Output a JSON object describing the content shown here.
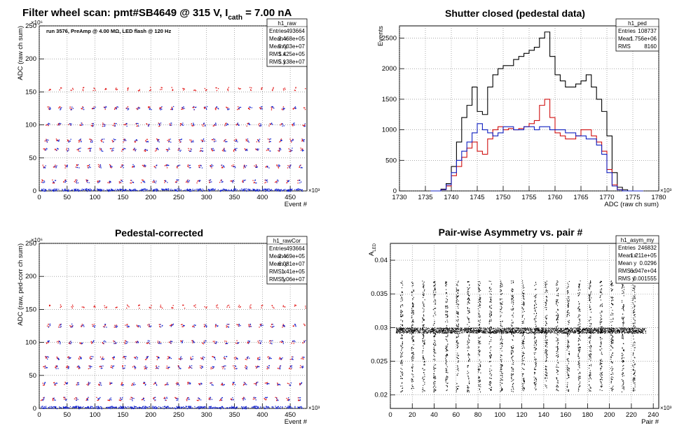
{
  "page_title": {
    "prefix": "Filter wheel scan: pmt#SB4649 @   315 V, I",
    "subscript": "cath",
    "suffix": " = 7.00 nA"
  },
  "chart_data": [
    {
      "id": "raw",
      "type": "scatter",
      "title": "",
      "note": "run 3576, PreAmp @ 4.00 MΩ, LED flash @  120 Hz",
      "xlabel": "Event #",
      "ylabel": "ADC (raw ch sum)",
      "x_multiplier": "×10³",
      "y_multiplier": "×10⁶",
      "xlim": [
        0,
        480
      ],
      "ylim": [
        0,
        250
      ],
      "xticks": [
        0,
        50,
        100,
        150,
        200,
        250,
        300,
        350,
        400,
        450
      ],
      "yticks": [
        0,
        50,
        100,
        150,
        200,
        250
      ],
      "grid": true,
      "series": [
        {
          "color": "#e01010",
          "levels": [
            15,
            38,
            63,
            77,
            101,
            126,
            155
          ]
        },
        {
          "color": "#1020d0",
          "levels": [
            2,
            15,
            38,
            63,
            77,
            101,
            126
          ]
        }
      ],
      "stats": {
        "name": "h1_raw",
        "rows": [
          [
            "Entries",
            "493664"
          ],
          [
            "Mean x",
            "2.468e+05"
          ],
          [
            "Mean y",
            "5.603e+07"
          ],
          [
            "RMS x",
            "1.425e+05"
          ],
          [
            "RMS y",
            "5.138e+07"
          ]
        ]
      }
    },
    {
      "id": "ped",
      "type": "line",
      "title": "Shutter closed (pedestal data)",
      "xlabel": "ADC (raw ch sum)",
      "ylabel": "Events",
      "x_multiplier": "×10³",
      "xlim": [
        1730,
        1780
      ],
      "ylim": [
        0,
        2700
      ],
      "xticks": [
        1730,
        1735,
        1740,
        1745,
        1750,
        1755,
        1760,
        1765,
        1770,
        1775,
        1780
      ],
      "yticks": [
        0,
        500,
        1000,
        1500,
        2000,
        2500
      ],
      "grid": true,
      "x": [
        1736,
        1738,
        1739,
        1740,
        1741,
        1742,
        1743,
        1744,
        1745,
        1746,
        1747,
        1748,
        1749,
        1750,
        1751,
        1752,
        1753,
        1754,
        1755,
        1756,
        1757,
        1758,
        1759,
        1760,
        1761,
        1762,
        1763,
        1764,
        1765,
        1766,
        1767,
        1768,
        1769,
        1770,
        1771,
        1772,
        1773,
        1774,
        1776
      ],
      "series": [
        {
          "color": "#000000",
          "values": [
            0,
            30,
            120,
            400,
            800,
            1200,
            1400,
            1700,
            1300,
            1250,
            1700,
            1900,
            2000,
            2050,
            2050,
            2150,
            2200,
            2250,
            2300,
            2350,
            2500,
            2600,
            2200,
            1900,
            1800,
            1700,
            1700,
            1750,
            1800,
            1900,
            1700,
            1500,
            1300,
            900,
            300,
            60,
            20,
            0,
            0
          ]
        },
        {
          "color": "#d01010",
          "values": [
            0,
            20,
            80,
            250,
            400,
            550,
            700,
            800,
            650,
            600,
            850,
            1000,
            1050,
            1000,
            1020,
            1000,
            1020,
            1050,
            1100,
            1150,
            1400,
            1500,
            1200,
            950,
            900,
            850,
            850,
            900,
            1000,
            1000,
            900,
            800,
            650,
            350,
            100,
            20,
            0,
            0,
            0
          ]
        },
        {
          "color": "#1020c0",
          "values": [
            0,
            20,
            100,
            300,
            500,
            650,
            800,
            950,
            1100,
            1000,
            950,
            900,
            950,
            1050,
            1050,
            1000,
            1000,
            1050,
            1050,
            1000,
            1050,
            1050,
            1000,
            1000,
            1000,
            950,
            950,
            900,
            900,
            850,
            850,
            750,
            600,
            300,
            80,
            20,
            0,
            0,
            0
          ]
        }
      ],
      "stats": {
        "name": "h1_ped",
        "rows": [
          [
            "Entries",
            "108737"
          ],
          [
            "Mean",
            "1.756e+06"
          ],
          [
            "RMS",
            "8160"
          ]
        ]
      }
    },
    {
      "id": "rawcor",
      "type": "scatter",
      "title": "Pedestal-corrected",
      "xlabel": "Event #",
      "ylabel": "ADC (raw, ped-corr ch sum)",
      "x_multiplier": "×10³",
      "y_multiplier": "×10⁶",
      "xlim": [
        0,
        480
      ],
      "ylim": [
        0,
        250
      ],
      "xticks": [
        0,
        50,
        100,
        150,
        200,
        250,
        300,
        350,
        400,
        450
      ],
      "yticks": [
        0,
        50,
        100,
        150,
        200,
        250
      ],
      "grid": true,
      "series": [
        {
          "color": "#e01010",
          "levels": [
            15,
            38,
            63,
            77,
            101,
            126,
            155
          ]
        },
        {
          "color": "#1020d0",
          "levels": [
            2,
            15,
            38,
            63,
            77,
            101,
            126
          ]
        }
      ],
      "stats": {
        "name": "h1_rawCor",
        "rows": [
          [
            "Entries",
            "493664"
          ],
          [
            "Mean x",
            "2.469e+05"
          ],
          [
            "Mean y",
            "6.081e+07"
          ],
          [
            "RMS x",
            "1.41e+05"
          ],
          [
            "RMS y",
            "5.06e+07"
          ]
        ]
      }
    },
    {
      "id": "asym",
      "type": "scatter",
      "title": "Pair-wise Asymmetry vs. pair #",
      "xlabel": "Pair #",
      "ylabel": "A",
      "ylabel_sub": "LED",
      "x_multiplier": "×10³",
      "xlim": [
        0,
        245
      ],
      "ylim": [
        0.018,
        0.0425
      ],
      "xticks": [
        0,
        20,
        40,
        60,
        80,
        100,
        120,
        140,
        160,
        180,
        200,
        220,
        240
      ],
      "yticks": [
        0.02,
        0.025,
        0.03,
        0.035,
        0.04
      ],
      "grid": true,
      "band": {
        "center": 0.0296,
        "halfwidth": 0.0004,
        "x_from": 5,
        "x_to": 233
      },
      "spike_x": [
        10,
        20,
        30,
        40,
        51,
        61,
        71,
        81,
        91,
        101,
        111,
        121,
        132,
        142,
        152,
        162,
        172,
        182,
        192,
        202,
        212,
        222
      ],
      "spike_range": [
        0.0205,
        0.037
      ],
      "series": [
        {
          "color": "#000000",
          "name": ""
        }
      ],
      "stats": {
        "name": "h1_asym_my",
        "rows": [
          [
            "Entries",
            "246832"
          ],
          [
            "Mean x",
            "1.211e+05"
          ],
          [
            "Mean y",
            "0.0296"
          ],
          [
            "RMS x",
            "6.947e+04"
          ],
          [
            "RMS y",
            "0.001555"
          ]
        ]
      }
    }
  ]
}
